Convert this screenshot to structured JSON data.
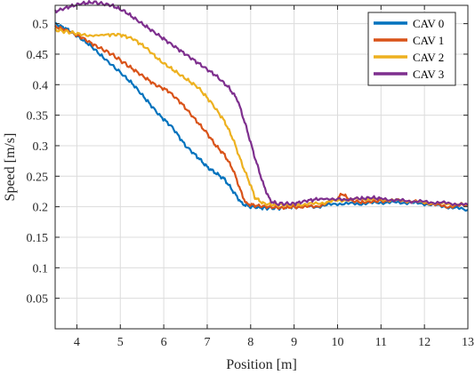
{
  "chart_data": {
    "type": "line",
    "xlabel": "Position [m]",
    "ylabel": "Speed [m/s]",
    "xlim": [
      3.5,
      13
    ],
    "ylim": [
      0,
      0.53
    ],
    "xticks": [
      4,
      5,
      6,
      7,
      8,
      9,
      10,
      11,
      12,
      13
    ],
    "yticks": [
      0.05,
      0.1,
      0.15,
      0.2,
      0.25,
      0.3,
      0.35,
      0.4,
      0.45,
      0.5
    ],
    "grid": true,
    "legend": "top-right",
    "series": [
      {
        "name": "CAV 0",
        "color": "#0072BD",
        "points": [
          [
            3.5,
            0.5
          ],
          [
            3.8,
            0.49
          ],
          [
            4.0,
            0.48
          ],
          [
            4.3,
            0.465
          ],
          [
            4.6,
            0.445
          ],
          [
            5.0,
            0.42
          ],
          [
            5.3,
            0.4
          ],
          [
            5.6,
            0.375
          ],
          [
            5.9,
            0.35
          ],
          [
            6.2,
            0.33
          ],
          [
            6.5,
            0.3
          ],
          [
            6.8,
            0.28
          ],
          [
            7.0,
            0.265
          ],
          [
            7.2,
            0.255
          ],
          [
            7.4,
            0.245
          ],
          [
            7.6,
            0.225
          ],
          [
            7.8,
            0.205
          ],
          [
            8.0,
            0.2
          ],
          [
            8.3,
            0.198
          ],
          [
            8.7,
            0.198
          ],
          [
            9.0,
            0.2
          ],
          [
            9.5,
            0.2
          ],
          [
            10.0,
            0.205
          ],
          [
            10.5,
            0.205
          ],
          [
            11.0,
            0.207
          ],
          [
            11.5,
            0.207
          ],
          [
            12.0,
            0.205
          ],
          [
            12.5,
            0.2
          ],
          [
            13.0,
            0.195
          ]
        ]
      },
      {
        "name": "CAV 1",
        "color": "#D95319",
        "points": [
          [
            3.5,
            0.495
          ],
          [
            3.8,
            0.488
          ],
          [
            4.1,
            0.478
          ],
          [
            4.4,
            0.465
          ],
          [
            4.8,
            0.45
          ],
          [
            5.2,
            0.43
          ],
          [
            5.5,
            0.415
          ],
          [
            5.8,
            0.4
          ],
          [
            6.1,
            0.39
          ],
          [
            6.4,
            0.37
          ],
          [
            6.7,
            0.345
          ],
          [
            7.0,
            0.32
          ],
          [
            7.2,
            0.3
          ],
          [
            7.4,
            0.285
          ],
          [
            7.6,
            0.26
          ],
          [
            7.8,
            0.22
          ],
          [
            7.9,
            0.205
          ],
          [
            8.1,
            0.202
          ],
          [
            8.4,
            0.2
          ],
          [
            8.7,
            0.198
          ],
          [
            9.0,
            0.2
          ],
          [
            9.5,
            0.2
          ],
          [
            10.0,
            0.212
          ],
          [
            10.1,
            0.222
          ],
          [
            10.3,
            0.21
          ],
          [
            10.6,
            0.207
          ],
          [
            11.0,
            0.21
          ],
          [
            11.5,
            0.21
          ],
          [
            12.0,
            0.207
          ],
          [
            12.5,
            0.2
          ],
          [
            13.0,
            0.203
          ]
        ]
      },
      {
        "name": "CAV 2",
        "color": "#EDB120",
        "points": [
          [
            3.5,
            0.49
          ],
          [
            3.9,
            0.485
          ],
          [
            4.3,
            0.48
          ],
          [
            4.7,
            0.482
          ],
          [
            5.0,
            0.482
          ],
          [
            5.3,
            0.475
          ],
          [
            5.6,
            0.46
          ],
          [
            5.9,
            0.44
          ],
          [
            6.2,
            0.425
          ],
          [
            6.5,
            0.41
          ],
          [
            6.8,
            0.395
          ],
          [
            7.1,
            0.37
          ],
          [
            7.4,
            0.34
          ],
          [
            7.6,
            0.31
          ],
          [
            7.8,
            0.27
          ],
          [
            8.0,
            0.235
          ],
          [
            8.1,
            0.215
          ],
          [
            8.3,
            0.205
          ],
          [
            8.6,
            0.203
          ],
          [
            9.0,
            0.203
          ],
          [
            9.5,
            0.205
          ],
          [
            10.0,
            0.21
          ],
          [
            10.5,
            0.213
          ],
          [
            11.0,
            0.212
          ],
          [
            11.5,
            0.21
          ],
          [
            12.0,
            0.207
          ],
          [
            12.5,
            0.205
          ],
          [
            13.0,
            0.203
          ]
        ]
      },
      {
        "name": "CAV 3",
        "color": "#7E2F8E",
        "points": [
          [
            3.5,
            0.52
          ],
          [
            3.8,
            0.527
          ],
          [
            4.1,
            0.533
          ],
          [
            4.4,
            0.535
          ],
          [
            4.8,
            0.53
          ],
          [
            5.1,
            0.52
          ],
          [
            5.4,
            0.505
          ],
          [
            5.7,
            0.49
          ],
          [
            6.0,
            0.475
          ],
          [
            6.3,
            0.46
          ],
          [
            6.6,
            0.445
          ],
          [
            6.9,
            0.43
          ],
          [
            7.2,
            0.415
          ],
          [
            7.5,
            0.395
          ],
          [
            7.7,
            0.375
          ],
          [
            7.9,
            0.33
          ],
          [
            8.1,
            0.28
          ],
          [
            8.3,
            0.235
          ],
          [
            8.45,
            0.21
          ],
          [
            8.6,
            0.205
          ],
          [
            9.0,
            0.205
          ],
          [
            9.3,
            0.21
          ],
          [
            9.6,
            0.213
          ],
          [
            10.0,
            0.212
          ],
          [
            10.5,
            0.213
          ],
          [
            10.8,
            0.215
          ],
          [
            11.0,
            0.213
          ],
          [
            11.5,
            0.21
          ],
          [
            12.0,
            0.208
          ],
          [
            12.5,
            0.206
          ],
          [
            13.0,
            0.203
          ]
        ]
      }
    ]
  }
}
